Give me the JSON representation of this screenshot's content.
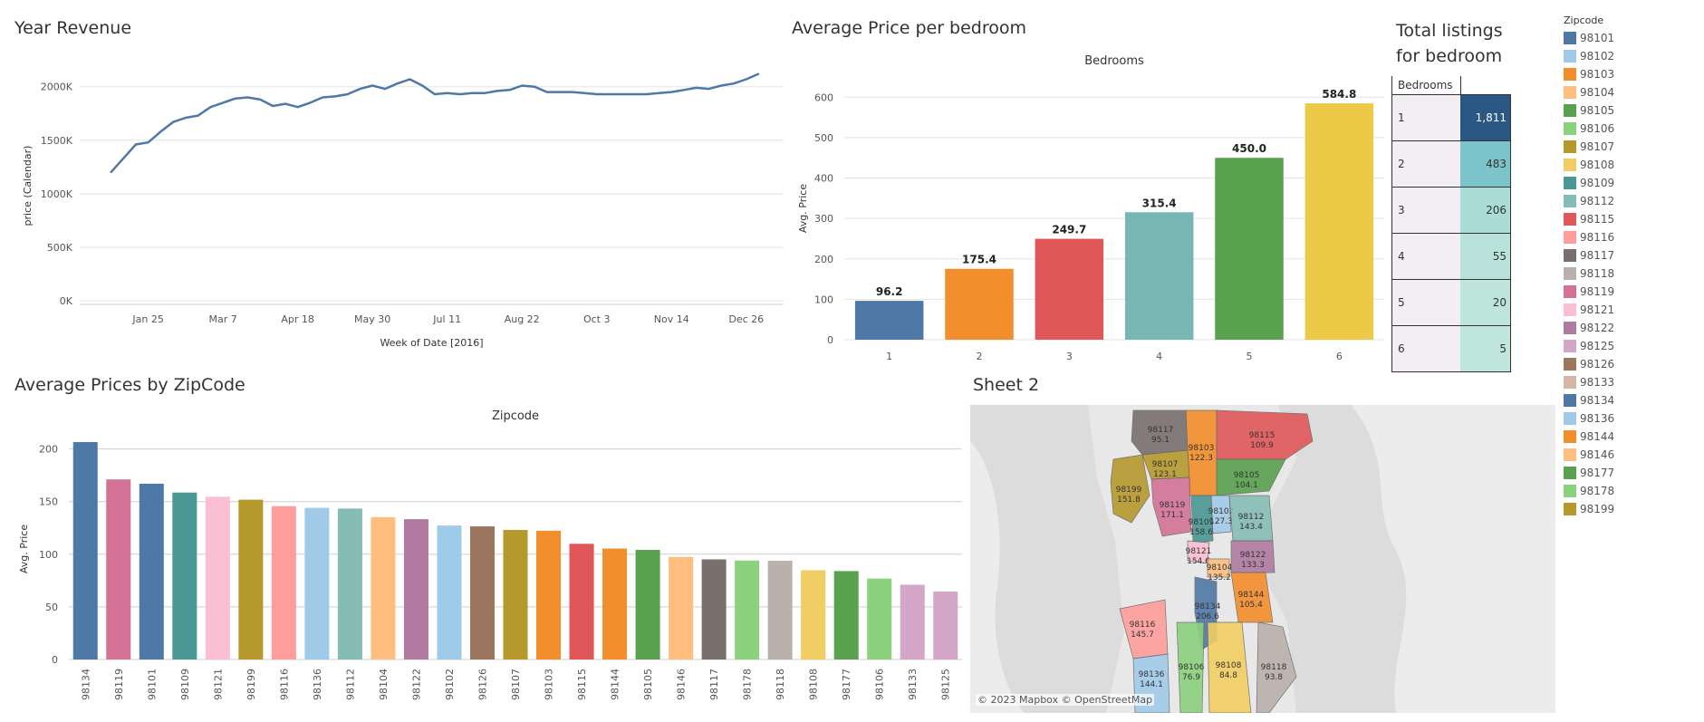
{
  "panels": {
    "year_revenue_title": "Year Revenue",
    "avg_price_bedroom_title": "Average Price per bedroom",
    "total_listings_title_line1": "Total listings",
    "total_listings_title_line2": "for bedroom",
    "avg_price_zip_title": "Average Prices by ZipCode",
    "sheet2_title": "Sheet 2"
  },
  "chart_data": [
    {
      "type": "line",
      "xlabel": "Week of Date [2016]",
      "ylabel": "price (Calendar)",
      "ylim": [
        0,
        2150000
      ],
      "yticks": [
        {
          "value": 0,
          "label": "0K"
        },
        {
          "value": 500000,
          "label": "500K"
        },
        {
          "value": 1000000,
          "label": "1000K"
        },
        {
          "value": 1500000,
          "label": "1500K"
        },
        {
          "value": 2000000,
          "label": "2000K"
        }
      ],
      "xticks": [
        {
          "week": 3,
          "label": "Jan 25"
        },
        {
          "week": 9,
          "label": "Mar 7"
        },
        {
          "week": 15,
          "label": "Apr 18"
        },
        {
          "week": 21,
          "label": "May 30"
        },
        {
          "week": 27,
          "label": "Jul 11"
        },
        {
          "week": 33,
          "label": "Aug 22"
        },
        {
          "week": 39,
          "label": "Oct 3"
        },
        {
          "week": 45,
          "label": "Nov 14"
        },
        {
          "week": 51,
          "label": "Dec 26"
        }
      ],
      "x_range": [
        -2.5,
        54
      ],
      "color": "#4e79a7",
      "series": [
        {
          "x": [
            0,
            1,
            2,
            3,
            4,
            5,
            6,
            7,
            8,
            9,
            10,
            11,
            12,
            13,
            14,
            15,
            16,
            17,
            18,
            19,
            20,
            21,
            22,
            23,
            24,
            25,
            26,
            27,
            28,
            29,
            30,
            31,
            32,
            33,
            34,
            35,
            36,
            37,
            38,
            39,
            40,
            41,
            42,
            43,
            44,
            45,
            46,
            47,
            48,
            49,
            50,
            51,
            52
          ],
          "values": [
            1200000,
            1330000,
            1460000,
            1480000,
            1580000,
            1670000,
            1710000,
            1730000,
            1810000,
            1850000,
            1890000,
            1900000,
            1880000,
            1820000,
            1840000,
            1810000,
            1850000,
            1900000,
            1910000,
            1930000,
            1980000,
            2010000,
            1980000,
            2030000,
            2070000,
            2010000,
            1930000,
            1940000,
            1930000,
            1940000,
            1940000,
            1960000,
            1970000,
            2010000,
            2000000,
            1950000,
            1950000,
            1950000,
            1940000,
            1930000,
            1930000,
            1930000,
            1930000,
            1930000,
            1940000,
            1950000,
            1970000,
            1990000,
            1980000,
            2010000,
            2030000,
            2070000,
            2120000
          ]
        }
      ]
    },
    {
      "type": "bar",
      "header": "Bedrooms",
      "ylabel": "Avg. Price",
      "ylim": [
        0,
        650
      ],
      "yticks": [
        0,
        100,
        200,
        300,
        400,
        500,
        600
      ],
      "categories": [
        "1",
        "2",
        "3",
        "4",
        "5",
        "6"
      ],
      "values": [
        96.2,
        175.4,
        249.7,
        315.4,
        450.0,
        584.8
      ],
      "value_labels": [
        "96.2",
        "175.4",
        "249.7",
        "315.4",
        "450.0",
        "584.8"
      ],
      "colors": [
        "#4e79a7",
        "#f28e2b",
        "#e15759",
        "#76b7b2",
        "#59a14f",
        "#edc948"
      ]
    },
    {
      "type": "table",
      "header": "Bedrooms",
      "rows": [
        {
          "bedrooms": "1",
          "count": "1,811",
          "value": 1811,
          "color": "#2a5783",
          "text_color": "#ffffff"
        },
        {
          "bedrooms": "2",
          "count": "483",
          "value": 483,
          "color": "#7cc4c9",
          "text_color": "#333333"
        },
        {
          "bedrooms": "3",
          "count": "206",
          "value": 206,
          "color": "#a9ddd5",
          "text_color": "#333333"
        },
        {
          "bedrooms": "4",
          "count": "55",
          "value": 55,
          "color": "#b9e3da",
          "text_color": "#333333"
        },
        {
          "bedrooms": "5",
          "count": "20",
          "value": 20,
          "color": "#bde5dc",
          "text_color": "#333333"
        },
        {
          "bedrooms": "6",
          "count": "5",
          "value": 5,
          "color": "#bfe6dd",
          "text_color": "#333333"
        }
      ]
    },
    {
      "type": "bar",
      "header": "Zipcode",
      "ylabel": "Avg. Price",
      "ylim": [
        0,
        210
      ],
      "yticks": [
        0,
        50,
        100,
        150,
        200
      ],
      "categories": [
        "98134",
        "98119",
        "98101",
        "98109",
        "98121",
        "98199",
        "98116",
        "98136",
        "98112",
        "98104",
        "98122",
        "98102",
        "98126",
        "98107",
        "98103",
        "98115",
        "98144",
        "98105",
        "98146",
        "98117",
        "98178",
        "98118",
        "98108",
        "98177",
        "98106",
        "98133",
        "98125"
      ],
      "values": [
        206.6,
        171.1,
        167,
        158.6,
        154.6,
        151.8,
        145.7,
        144.1,
        143.4,
        135.2,
        133.3,
        127.3,
        126.5,
        123.1,
        122.3,
        109.9,
        105.4,
        104.1,
        97.5,
        95.1,
        94,
        93.8,
        84.8,
        84,
        76.9,
        71,
        64.5
      ],
      "colors": [
        "#4e79a7",
        "#d37295",
        "#4e79a7",
        "#499894",
        "#fabfd2",
        "#b6992d",
        "#ff9d9a",
        "#a0cbe8",
        "#86bcb6",
        "#ffbe7d",
        "#b07aa1",
        "#a0cbe8",
        "#9d7660",
        "#b6992d",
        "#f28e2b",
        "#e15759",
        "#f28e2b",
        "#59a14f",
        "#ffbe7d",
        "#79706e",
        "#8cd17d",
        "#bab0ac",
        "#f1ce63",
        "#59a14f",
        "#8cd17d",
        "#d4a6c8",
        "#d4a6c8"
      ]
    }
  ],
  "map": {
    "attribution": "© 2023 Mapbox © OpenStreetMap",
    "regions": [
      {
        "zip": "98117",
        "value": "95.1",
        "color": "#79706e"
      },
      {
        "zip": "98103",
        "value": "122.3",
        "color": "#f28e2b"
      },
      {
        "zip": "98115",
        "value": "109.9",
        "color": "#e15759"
      },
      {
        "zip": "98107",
        "value": "123.1",
        "color": "#b6992d"
      },
      {
        "zip": "98105",
        "value": "104.1",
        "color": "#59a14f"
      },
      {
        "zip": "98199",
        "value": "151.8",
        "color": "#b6992d"
      },
      {
        "zip": "98119",
        "value": "171.1",
        "color": "#d37295"
      },
      {
        "zip": "98109",
        "value": "158.6",
        "color": "#499894"
      },
      {
        "zip": "98102",
        "value": "127.3",
        "color": "#a0cbe8"
      },
      {
        "zip": "98112",
        "value": "143.4",
        "color": "#86bcb6"
      },
      {
        "zip": "98121",
        "value": "154.6",
        "color": "#fabfd2"
      },
      {
        "zip": "98104",
        "value": "135.2",
        "color": "#ffbe7d"
      },
      {
        "zip": "98122",
        "value": "133.3",
        "color": "#b07aa1"
      },
      {
        "zip": "98134",
        "value": "206.6",
        "color": "#4e79a7"
      },
      {
        "zip": "98144",
        "value": "105.4",
        "color": "#f28e2b"
      },
      {
        "zip": "98116",
        "value": "145.7",
        "color": "#ff9d9a"
      },
      {
        "zip": "98136",
        "value": "144.1",
        "color": "#a0cbe8"
      },
      {
        "zip": "98106",
        "value": "76.9",
        "color": "#8cd17d"
      },
      {
        "zip": "98108",
        "value": "84.8",
        "color": "#f1ce63"
      },
      {
        "zip": "98118",
        "value": "93.8",
        "color": "#bab0ac"
      }
    ]
  },
  "legend": {
    "title": "Zipcode",
    "items": [
      {
        "label": "98101",
        "color": "#4e79a7"
      },
      {
        "label": "98102",
        "color": "#a0cbe8"
      },
      {
        "label": "98103",
        "color": "#f28e2b"
      },
      {
        "label": "98104",
        "color": "#ffbe7d"
      },
      {
        "label": "98105",
        "color": "#59a14f"
      },
      {
        "label": "98106",
        "color": "#8cd17d"
      },
      {
        "label": "98107",
        "color": "#b6992d"
      },
      {
        "label": "98108",
        "color": "#f1ce63"
      },
      {
        "label": "98109",
        "color": "#499894"
      },
      {
        "label": "98112",
        "color": "#86bcb6"
      },
      {
        "label": "98115",
        "color": "#e15759"
      },
      {
        "label": "98116",
        "color": "#ff9d9a"
      },
      {
        "label": "98117",
        "color": "#79706e"
      },
      {
        "label": "98118",
        "color": "#bab0ac"
      },
      {
        "label": "98119",
        "color": "#d37295"
      },
      {
        "label": "98121",
        "color": "#fabfd2"
      },
      {
        "label": "98122",
        "color": "#b07aa1"
      },
      {
        "label": "98125",
        "color": "#d4a6c8"
      },
      {
        "label": "98126",
        "color": "#9d7660"
      },
      {
        "label": "98133",
        "color": "#d7b5a6"
      },
      {
        "label": "98134",
        "color": "#4e79a7"
      },
      {
        "label": "98136",
        "color": "#a0cbe8"
      },
      {
        "label": "98144",
        "color": "#f28e2b"
      },
      {
        "label": "98146",
        "color": "#ffbe7d"
      },
      {
        "label": "98177",
        "color": "#59a14f"
      },
      {
        "label": "98178",
        "color": "#8cd17d"
      },
      {
        "label": "98199",
        "color": "#b6992d"
      }
    ]
  }
}
